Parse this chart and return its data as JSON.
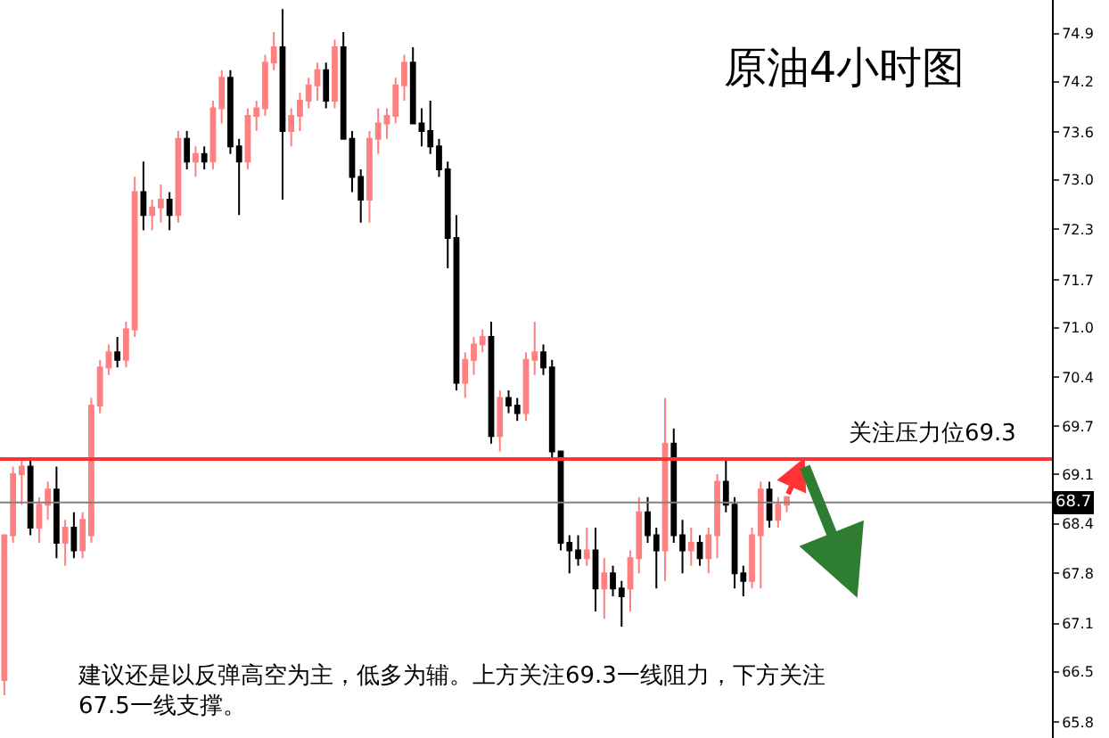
{
  "chart_data": {
    "type": "candlestick",
    "title": "原油4小时图",
    "annotations": [
      "建议还是以反弹高空为主，低多为辅。上方关注69.3一线阻力，下方关注\n67.5一线支撑。"
    ],
    "categories": [
      null,
      null,
      null,
      null,
      null,
      null,
      null,
      null,
      null,
      null,
      null,
      null,
      null,
      null,
      null,
      null,
      null,
      null,
      null,
      null,
      null,
      null,
      null,
      null,
      null,
      null,
      null,
      null,
      null,
      null,
      null,
      null,
      null,
      null,
      null,
      null,
      null,
      null,
      null,
      null,
      null,
      null,
      null,
      null,
      null,
      null,
      null,
      null,
      null,
      null,
      null,
      null,
      null,
      null,
      null,
      null,
      null,
      null,
      null,
      null,
      null,
      null,
      null,
      null,
      null,
      null,
      null,
      null,
      null,
      null,
      null,
      null,
      null,
      null,
      null,
      null,
      null,
      null,
      null,
      null,
      null,
      null,
      null,
      null,
      null,
      null,
      null,
      null,
      null,
      null,
      null,
      null,
      null,
      null,
      null,
      null,
      null,
      null,
      null,
      null,
      null,
      null,
      null,
      null,
      null,
      null,
      null,
      null,
      null,
      null,
      null,
      null,
      null,
      null,
      null,
      null,
      null,
      null,
      null,
      null,
      null
    ],
    "ohlc": [
      [
        66.4,
        68.3,
        66.2,
        68.3
      ],
      [
        68.3,
        69.2,
        68.2,
        69.1
      ],
      [
        69.1,
        69.3,
        68.7,
        69.2
      ],
      [
        69.2,
        69.3,
        68.3,
        68.4
      ],
      [
        68.4,
        68.8,
        68.2,
        68.7
      ],
      [
        68.7,
        69.0,
        68.5,
        68.9
      ],
      [
        68.9,
        69.2,
        68.0,
        68.2
      ],
      [
        68.2,
        68.5,
        67.9,
        68.4
      ],
      [
        68.4,
        68.6,
        68.0,
        68.1
      ],
      [
        68.1,
        68.6,
        68.0,
        68.5
      ],
      [
        68.3,
        70.1,
        68.2,
        70.0
      ],
      [
        70.0,
        70.6,
        69.9,
        70.5
      ],
      [
        70.5,
        70.8,
        70.4,
        70.7
      ],
      [
        70.7,
        70.9,
        70.5,
        70.6
      ],
      [
        70.6,
        71.1,
        70.5,
        71.0
      ],
      [
        71.0,
        73.0,
        70.9,
        72.8
      ],
      [
        72.8,
        73.2,
        72.3,
        72.5
      ],
      [
        72.5,
        72.7,
        72.3,
        72.6
      ],
      [
        72.6,
        72.9,
        72.4,
        72.7
      ],
      [
        72.7,
        72.8,
        72.3,
        72.5
      ],
      [
        72.5,
        73.6,
        72.4,
        73.5
      ],
      [
        73.5,
        73.6,
        73.1,
        73.2
      ],
      [
        73.2,
        73.4,
        73.0,
        73.3
      ],
      [
        73.3,
        73.4,
        73.1,
        73.2
      ],
      [
        73.2,
        74.0,
        73.1,
        73.9
      ],
      [
        73.9,
        74.4,
        73.7,
        74.3
      ],
      [
        74.3,
        74.4,
        73.3,
        73.4
      ],
      [
        73.4,
        73.5,
        72.5,
        73.2
      ],
      [
        73.2,
        73.9,
        73.1,
        73.8
      ],
      [
        73.8,
        74.0,
        73.6,
        73.9
      ],
      [
        73.9,
        74.6,
        73.8,
        74.5
      ],
      [
        74.5,
        74.9,
        74.4,
        74.7
      ],
      [
        74.7,
        75.2,
        72.7,
        73.6
      ],
      [
        73.6,
        73.9,
        73.4,
        73.8
      ],
      [
        73.8,
        74.1,
        73.6,
        74.0
      ],
      [
        74.0,
        74.3,
        73.9,
        74.2
      ],
      [
        74.2,
        74.5,
        74.0,
        74.4
      ],
      [
        74.4,
        74.5,
        73.9,
        74.0
      ],
      [
        74.0,
        74.8,
        73.9,
        74.7
      ],
      [
        74.7,
        74.9,
        73.5,
        73.5
      ],
      [
        73.5,
        73.6,
        72.8,
        73.0
      ],
      [
        73.0,
        73.1,
        72.4,
        72.7
      ],
      [
        72.7,
        73.6,
        72.4,
        73.5
      ],
      [
        73.5,
        73.9,
        73.3,
        73.7
      ],
      [
        73.7,
        73.9,
        73.5,
        73.8
      ],
      [
        73.8,
        74.3,
        73.7,
        74.2
      ],
      [
        74.2,
        74.6,
        74.0,
        74.5
      ],
      [
        74.5,
        74.7,
        73.7,
        73.7
      ],
      [
        73.7,
        73.9,
        73.4,
        73.6
      ],
      [
        73.6,
        74.0,
        73.3,
        73.4
      ],
      [
        73.4,
        73.5,
        73.0,
        73.1
      ],
      [
        73.1,
        73.2,
        71.8,
        72.2
      ],
      [
        72.2,
        72.5,
        70.2,
        70.3
      ],
      [
        70.3,
        70.7,
        70.1,
        70.6
      ],
      [
        70.6,
        70.9,
        70.4,
        70.8
      ],
      [
        70.8,
        71.0,
        70.7,
        70.9
      ],
      [
        70.9,
        71.1,
        69.5,
        69.6
      ],
      [
        69.6,
        70.2,
        69.4,
        70.1
      ],
      [
        70.1,
        70.2,
        69.9,
        70.0
      ],
      [
        70.0,
        70.1,
        69.8,
        69.9
      ],
      [
        69.9,
        70.7,
        69.8,
        70.6
      ],
      [
        70.6,
        71.1,
        70.4,
        70.7
      ],
      [
        70.7,
        70.8,
        70.4,
        70.5
      ],
      [
        70.5,
        70.6,
        69.3,
        69.4
      ],
      [
        69.4,
        69.4,
        68.1,
        68.2
      ],
      [
        68.2,
        68.3,
        67.8,
        68.1
      ],
      [
        68.1,
        68.3,
        67.9,
        68.0
      ],
      [
        68.0,
        68.4,
        67.9,
        68.1
      ],
      [
        68.1,
        68.4,
        67.3,
        67.6
      ],
      [
        67.6,
        68.0,
        67.2,
        67.8
      ],
      [
        67.8,
        67.9,
        67.5,
        67.6
      ],
      [
        67.6,
        67.7,
        67.1,
        67.5
      ],
      [
        67.6,
        68.1,
        67.3,
        68.0
      ],
      [
        68.0,
        68.8,
        67.8,
        68.6
      ],
      [
        68.6,
        68.8,
        68.2,
        68.3
      ],
      [
        68.3,
        68.4,
        67.6,
        68.1
      ],
      [
        68.1,
        70.1,
        67.7,
        69.5
      ],
      [
        69.5,
        69.7,
        68.2,
        68.3
      ],
      [
        68.3,
        68.5,
        67.8,
        68.1
      ],
      [
        68.1,
        68.4,
        67.9,
        68.2
      ],
      [
        68.2,
        68.3,
        67.9,
        68.0
      ],
      [
        68.0,
        68.4,
        67.8,
        68.3
      ],
      [
        68.3,
        69.1,
        68.0,
        69.0
      ],
      [
        69.0,
        69.3,
        68.6,
        68.7
      ],
      [
        68.7,
        68.8,
        67.6,
        67.8
      ],
      [
        67.8,
        67.9,
        67.5,
        67.7
      ],
      [
        67.7,
        68.4,
        67.6,
        68.3
      ],
      [
        68.3,
        69.0,
        67.6,
        68.9
      ],
      [
        68.9,
        69.0,
        68.4,
        68.5
      ],
      [
        68.5,
        68.8,
        68.4,
        68.7
      ],
      [
        68.7,
        68.8,
        68.6,
        68.8
      ],
      null,
      null,
      null,
      null,
      null,
      null,
      null,
      null,
      null,
      null,
      null,
      null,
      null,
      null,
      null,
      null,
      null,
      null,
      null,
      null,
      null,
      null,
      null,
      null,
      null,
      null,
      null,
      null,
      null,
      null
    ],
    "colors": [
      "#ff8080",
      "#ff8080",
      "#ff8080",
      "#000000",
      "#ff8080",
      "#ff8080",
      "#000000",
      "#ff8080",
      "#000000",
      "#ff8080",
      "#ff8080",
      "#ff8080",
      "#ff8080",
      "#000000",
      "#ff8080",
      "#ff8080",
      "#000000",
      "#ff8080",
      "#ff8080",
      "#000000",
      "#ff8080",
      "#000000",
      "#ff8080",
      "#000000",
      "#ff8080",
      "#ff8080",
      "#000000",
      "#000000",
      "#ff8080",
      "#ff8080",
      "#ff8080",
      "#ff8080",
      "#000000",
      "#ff8080",
      "#ff8080",
      "#ff8080",
      "#ff8080",
      "#000000",
      "#ff8080",
      "#000000",
      "#000000",
      "#000000",
      "#ff8080",
      "#ff8080",
      "#ff8080",
      "#ff8080",
      "#ff8080",
      "#000000",
      "#000000",
      "#000000",
      "#000000",
      "#000000",
      "#000000",
      "#ff8080",
      "#ff8080",
      "#ff8080",
      "#000000",
      "#ff8080",
      "#000000",
      "#000000",
      "#ff8080",
      "#ff8080",
      "#000000",
      "#000000",
      "#000000",
      "#000000",
      "#000000",
      "#ff8080",
      "#000000",
      "#ff8080",
      "#000000",
      "#000000",
      "#ff8080",
      "#ff8080",
      "#000000",
      "#000000",
      "#ff8080",
      "#000000",
      "#000000",
      "#ff8080",
      "#000000",
      "#ff8080",
      "#ff8080",
      "#000000",
      "#000000",
      "#000000",
      "#ff8080",
      "#ff8080",
      "#000000",
      "#ff8080",
      "#ff8080",
      null,
      null,
      null,
      null,
      null,
      null,
      null,
      null,
      null,
      null,
      null,
      null,
      null,
      null,
      null,
      null,
      null,
      null,
      null,
      null,
      null,
      null,
      null,
      null,
      null,
      null,
      null,
      null,
      null,
      null
    ],
    "ylim": [
      65.64,
      75.32
    ],
    "yticks": [
      {
        "value": 74.88,
        "label": "74.9"
      },
      {
        "value": 74.25,
        "label": "74.2"
      },
      {
        "value": 73.59,
        "label": "73.6"
      },
      {
        "value": 72.96,
        "label": "73.0"
      },
      {
        "value": 72.31,
        "label": "72.3"
      },
      {
        "value": 71.65,
        "label": "71.7"
      },
      {
        "value": 71.02,
        "label": "71.0"
      },
      {
        "value": 70.37,
        "label": "70.4"
      },
      {
        "value": 69.73,
        "label": "69.7"
      },
      {
        "value": 69.1,
        "label": "69.1"
      },
      {
        "value": 68.45,
        "label": "68.4"
      },
      {
        "value": 67.8,
        "label": "67.8"
      },
      {
        "value": 67.14,
        "label": "67.1"
      },
      {
        "value": 66.51,
        "label": "66.5"
      },
      {
        "value": 65.85,
        "label": "65.8"
      }
    ],
    "ref_lines": [
      {
        "axis": "y",
        "value": 68.73,
        "label": "68.7",
        "color": "#808080"
      },
      {
        "axis": "y",
        "value": 69.3,
        "label": "关注压力位69.3",
        "color": "#ff3333"
      }
    ],
    "tick_labels": "y"
  }
}
